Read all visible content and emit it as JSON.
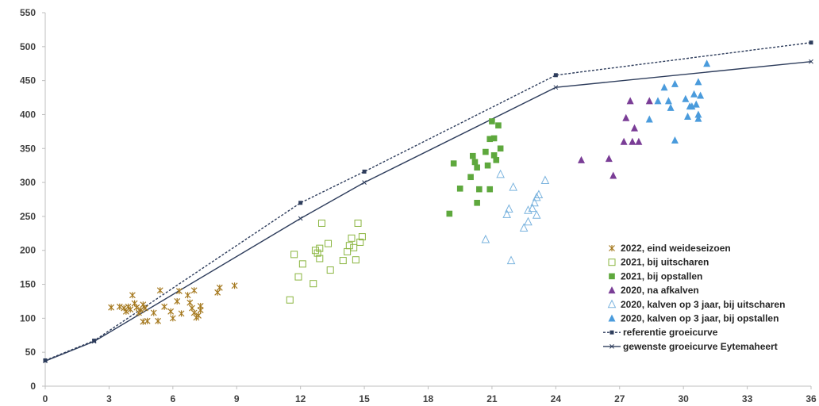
{
  "chart_data": {
    "type": "scatter",
    "xlim": [
      0,
      36
    ],
    "ylim": [
      0,
      550
    ],
    "x_ticks": [
      0,
      3,
      6,
      9,
      12,
      15,
      18,
      21,
      24,
      27,
      30,
      33,
      36
    ],
    "y_ticks": [
      0,
      50,
      100,
      150,
      200,
      250,
      300,
      350,
      400,
      450,
      500,
      550
    ],
    "grid": false,
    "legend_position": "bottom-right",
    "series": [
      {
        "name": "2022, eind weideseizoen",
        "marker": "asterisk",
        "color": "#a5791f",
        "points": [
          [
            3.1,
            116
          ],
          [
            3.5,
            117
          ],
          [
            3.7,
            115
          ],
          [
            3.8,
            110
          ],
          [
            3.9,
            117
          ],
          [
            4.0,
            113
          ],
          [
            4.1,
            134
          ],
          [
            4.2,
            122
          ],
          [
            4.3,
            116
          ],
          [
            4.4,
            108
          ],
          [
            4.5,
            112
          ],
          [
            4.6,
            120
          ],
          [
            4.7,
            115
          ],
          [
            4.6,
            95
          ],
          [
            4.8,
            96
          ],
          [
            5.1,
            108
          ],
          [
            5.3,
            96
          ],
          [
            5.4,
            141
          ],
          [
            5.6,
            117
          ],
          [
            5.9,
            110
          ],
          [
            6.0,
            100
          ],
          [
            6.2,
            125
          ],
          [
            6.3,
            140
          ],
          [
            6.4,
            107
          ],
          [
            6.7,
            134
          ],
          [
            6.8,
            123
          ],
          [
            6.9,
            115
          ],
          [
            7.0,
            108
          ],
          [
            7.1,
            101
          ],
          [
            7.0,
            141
          ],
          [
            7.2,
            104
          ],
          [
            7.3,
            112
          ],
          [
            7.3,
            118
          ],
          [
            8.1,
            138
          ],
          [
            8.2,
            145
          ],
          [
            8.9,
            148
          ]
        ]
      },
      {
        "name": "2021, bij uitscharen",
        "marker": "open-square",
        "color": "#8ab53f",
        "points": [
          [
            11.5,
            127
          ],
          [
            11.7,
            194
          ],
          [
            11.9,
            161
          ],
          [
            12.1,
            180
          ],
          [
            12.6,
            151
          ],
          [
            12.7,
            200
          ],
          [
            12.8,
            196
          ],
          [
            12.9,
            188
          ],
          [
            12.9,
            203
          ],
          [
            13.0,
            240
          ],
          [
            13.3,
            210
          ],
          [
            13.4,
            171
          ],
          [
            14.0,
            185
          ],
          [
            14.2,
            198
          ],
          [
            14.3,
            207
          ],
          [
            14.4,
            218
          ],
          [
            14.5,
            204
          ],
          [
            14.6,
            186
          ],
          [
            14.7,
            240
          ],
          [
            14.8,
            212
          ],
          [
            14.9,
            220
          ]
        ]
      },
      {
        "name": "2021, bij opstallen",
        "marker": "filled-square",
        "color": "#5ea83d",
        "points": [
          [
            19.0,
            254
          ],
          [
            19.2,
            328
          ],
          [
            19.5,
            291
          ],
          [
            20.0,
            308
          ],
          [
            20.1,
            339
          ],
          [
            20.2,
            330
          ],
          [
            20.3,
            270
          ],
          [
            20.3,
            322
          ],
          [
            20.4,
            290
          ],
          [
            20.7,
            345
          ],
          [
            20.8,
            325
          ],
          [
            20.9,
            290
          ],
          [
            20.9,
            364
          ],
          [
            21.0,
            390
          ],
          [
            21.1,
            340
          ],
          [
            21.1,
            365
          ],
          [
            21.2,
            333
          ],
          [
            21.3,
            384
          ],
          [
            21.4,
            350
          ]
        ]
      },
      {
        "name": "2020, na afkalven",
        "marker": "filled-triangle",
        "color": "#7a3d96",
        "points": [
          [
            25.2,
            333
          ],
          [
            26.5,
            335
          ],
          [
            26.7,
            310
          ],
          [
            27.2,
            360
          ],
          [
            27.3,
            395
          ],
          [
            27.5,
            420
          ],
          [
            27.6,
            360
          ],
          [
            27.7,
            380
          ],
          [
            27.9,
            360
          ],
          [
            28.4,
            420
          ]
        ]
      },
      {
        "name": "2020, kalven op 3 jaar, bij uitscharen",
        "marker": "open-triangle",
        "color": "#7ab3de",
        "points": [
          [
            20.7,
            216
          ],
          [
            21.4,
            312
          ],
          [
            21.7,
            253
          ],
          [
            21.8,
            261
          ],
          [
            21.9,
            185
          ],
          [
            22.0,
            293
          ],
          [
            22.5,
            233
          ],
          [
            22.7,
            242
          ],
          [
            22.7,
            259
          ],
          [
            22.9,
            262
          ],
          [
            23.0,
            270
          ],
          [
            23.1,
            252
          ],
          [
            23.1,
            278
          ],
          [
            23.2,
            282
          ],
          [
            23.5,
            303
          ]
        ]
      },
      {
        "name": "2020, kalven op 3 jaar, bij opstallen",
        "marker": "filled-triangle",
        "color": "#4a9bdc",
        "points": [
          [
            28.4,
            393
          ],
          [
            28.8,
            420
          ],
          [
            29.1,
            440
          ],
          [
            29.3,
            420
          ],
          [
            29.4,
            410
          ],
          [
            29.6,
            445
          ],
          [
            29.6,
            362
          ],
          [
            30.1,
            423
          ],
          [
            30.2,
            397
          ],
          [
            30.3,
            412
          ],
          [
            30.4,
            412
          ],
          [
            30.5,
            430
          ],
          [
            30.6,
            415
          ],
          [
            30.7,
            448
          ],
          [
            30.7,
            400
          ],
          [
            30.7,
            394
          ],
          [
            30.8,
            428
          ],
          [
            31.1,
            475
          ]
        ]
      },
      {
        "name": "referentie groeicurve",
        "marker": "line-dashed-square",
        "color": "#2e3d5c",
        "points": [
          [
            0,
            38
          ],
          [
            2.3,
            67
          ],
          [
            12,
            270
          ],
          [
            15,
            316
          ],
          [
            24,
            458
          ],
          [
            36,
            506
          ]
        ]
      },
      {
        "name": "gewenste groeicurve Eytemaheert",
        "marker": "line-solid-cross",
        "color": "#2e3d5c",
        "points": [
          [
            0,
            37
          ],
          [
            2.3,
            66
          ],
          [
            12,
            247
          ],
          [
            15,
            300
          ],
          [
            24,
            440
          ],
          [
            36,
            478
          ]
        ]
      }
    ]
  }
}
